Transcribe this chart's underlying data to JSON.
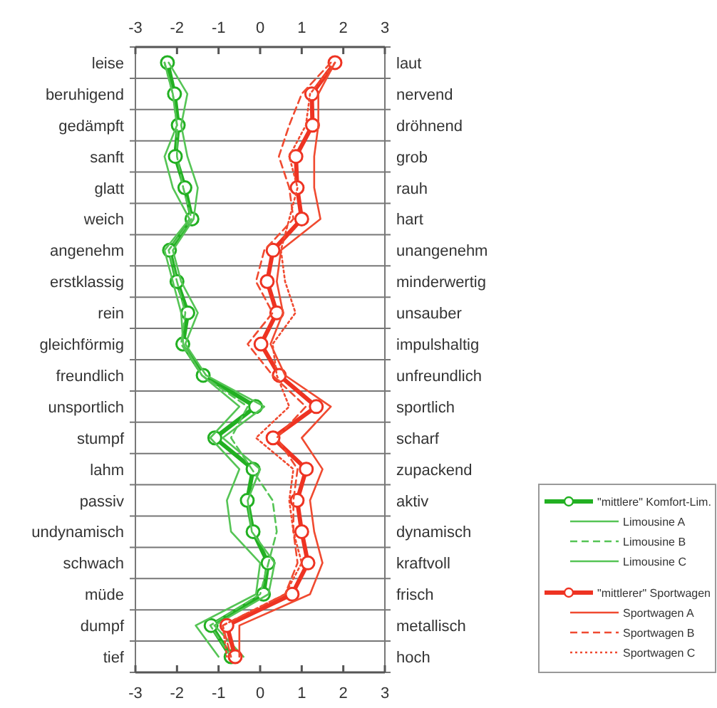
{
  "chart_data": {
    "type": "line",
    "orientation": "horizontal",
    "categories": [
      "leise",
      "beruhigend",
      "gedämpft",
      "sanft",
      "glatt",
      "weich",
      "angenehm",
      "erstklassig",
      "rein",
      "gleichförmig",
      "freundlich",
      "unsportlich",
      "stumpf",
      "lahm",
      "passiv",
      "undynamisch",
      "schwach",
      "müde",
      "dumpf",
      "tief"
    ],
    "y2_categories": [
      "laut",
      "nervend",
      "dröhnend",
      "grob",
      "rauh",
      "hart",
      "unangenehm",
      "minderwertig",
      "unsauber",
      "impulshaltig",
      "unfreundlich",
      "sportlich",
      "scharf",
      "zupackend",
      "aktiv",
      "dynamisch",
      "kraftvoll",
      "frisch",
      "metallisch",
      "hoch"
    ],
    "xlim": [
      -3,
      3
    ],
    "xticks": [
      -3,
      -2,
      -1,
      0,
      1,
      2,
      3
    ],
    "x2lim": [
      -3,
      3
    ],
    "x2ticks": [
      -3,
      -2,
      -1,
      0,
      1,
      2,
      3
    ],
    "grid": "y",
    "legend": "bottom right",
    "series": [
      {
        "name": "\"mittlere\" Komfort-Lim.",
        "color": "#22b022",
        "marker": "circle",
        "line_style": "solid",
        "values": [
          -2.23,
          -2.06,
          -1.97,
          -2.04,
          -1.81,
          -1.64,
          -2.18,
          -2.0,
          -1.74,
          -1.86,
          -1.37,
          -0.11,
          -1.09,
          -0.17,
          -0.31,
          -0.17,
          0.19,
          0.08,
          -1.18,
          -0.7
        ]
      },
      {
        "name": "Limousine A",
        "color": "#55c455",
        "marker": "none",
        "line_style": "solid",
        "values": [
          -2.2,
          -1.75,
          -1.9,
          -1.75,
          -1.5,
          -1.6,
          -2.1,
          -1.9,
          -1.5,
          -1.8,
          -1.3,
          0.1,
          -0.9,
          0.0,
          -0.3,
          -0.2,
          0.35,
          0.2,
          -1.1,
          -0.4
        ]
      },
      {
        "name": "Limousine B",
        "color": "#55c455",
        "marker": "none",
        "line_style": "dashed",
        "values": [
          -2.3,
          -2.1,
          -2.0,
          -2.0,
          -1.85,
          -1.65,
          -2.2,
          -2.0,
          -1.8,
          -1.9,
          -1.4,
          -0.3,
          -0.7,
          -0.2,
          0.3,
          0.4,
          0.2,
          0.0,
          -1.2,
          -0.7
        ]
      },
      {
        "name": "Limousine C",
        "color": "#55c455",
        "marker": "none",
        "line_style": "solid",
        "values": [
          -2.3,
          -2.1,
          -2.0,
          -2.3,
          -2.1,
          -1.7,
          -2.3,
          -2.1,
          -1.9,
          -1.85,
          -1.4,
          -0.5,
          -1.2,
          -0.5,
          -0.8,
          -0.7,
          0.0,
          -0.1,
          -1.55,
          -1.0
        ]
      },
      {
        "name": "\"mittlerer\" Sportwagen",
        "color": "#ee3322",
        "marker": "circle",
        "line_style": "solid",
        "values": [
          1.8,
          1.24,
          1.26,
          0.86,
          0.89,
          1.0,
          0.31,
          0.17,
          0.4,
          0.02,
          0.46,
          1.35,
          0.31,
          1.11,
          0.89,
          1.0,
          1.15,
          0.77,
          -0.8,
          -0.6
        ]
      },
      {
        "name": "Sportwagen A",
        "color": "#f04a30",
        "marker": "none",
        "line_style": "solid",
        "values": [
          1.8,
          1.4,
          1.4,
          1.3,
          1.3,
          1.45,
          0.5,
          0.4,
          0.55,
          0.25,
          0.6,
          1.7,
          1.0,
          1.5,
          1.2,
          1.3,
          1.5,
          1.2,
          -0.5,
          -0.5
        ]
      },
      {
        "name": "Sportwagen B",
        "color": "#f04a30",
        "marker": "none",
        "line_style": "dashed",
        "values": [
          1.7,
          1.0,
          0.7,
          0.45,
          0.7,
          0.8,
          0.1,
          -0.1,
          0.3,
          -0.3,
          0.3,
          1.1,
          0.4,
          0.9,
          0.8,
          0.8,
          0.9,
          0.6,
          -0.9,
          -0.7
        ]
      },
      {
        "name": "Sportwagen C",
        "color": "#f04a30",
        "marker": "none",
        "line_style": "dotted",
        "values": [
          1.8,
          1.2,
          1.1,
          0.7,
          0.9,
          0.7,
          0.5,
          0.6,
          0.85,
          0.3,
          0.4,
          0.7,
          -0.1,
          0.8,
          0.7,
          0.8,
          1.0,
          0.6,
          -0.9,
          -0.8
        ]
      }
    ]
  }
}
